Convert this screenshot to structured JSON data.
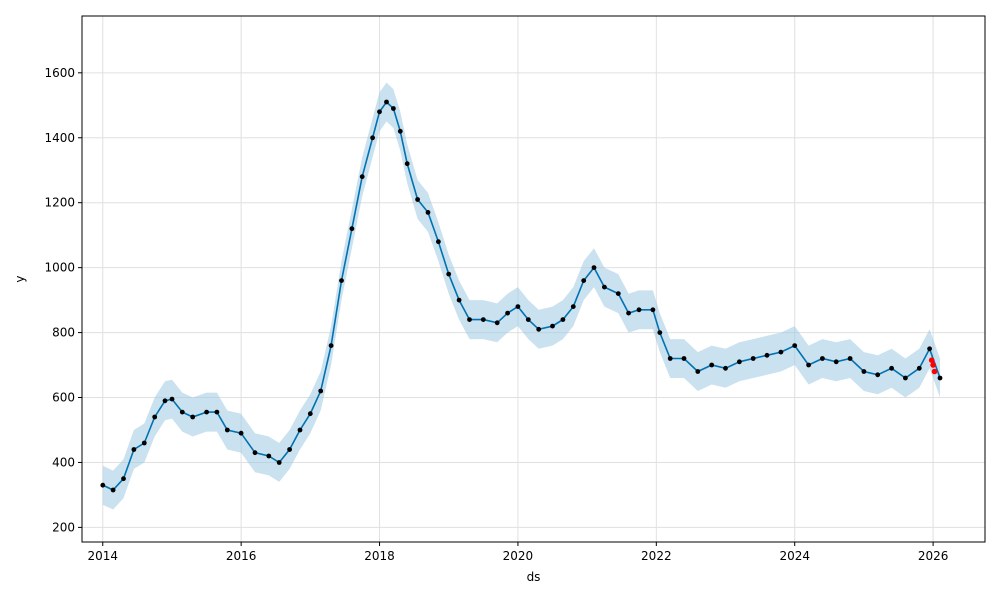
{
  "chart_data": {
    "type": "line",
    "title": "",
    "xlabel": "ds",
    "ylabel": "y",
    "xlim": [
      2013.7,
      2026.75
    ],
    "ylim": [
      155,
      1775
    ],
    "x_ticks": [
      2014,
      2016,
      2018,
      2020,
      2022,
      2024,
      2026
    ],
    "x_tick_labels": [
      "2014",
      "2016",
      "2018",
      "2020",
      "2022",
      "2024",
      "2026"
    ],
    "y_ticks": [
      200,
      400,
      600,
      800,
      1000,
      1200,
      1400,
      1600
    ],
    "y_tick_labels": [
      "200",
      "400",
      "600",
      "800",
      "1000",
      "1200",
      "1400",
      "1600"
    ],
    "grid": true,
    "colors": {
      "observed": "#000000",
      "forecast": "#0072b2",
      "interval": "#9ec9e2",
      "recent": "#ff0000",
      "grid": "#e0e0e0"
    },
    "series": [
      {
        "kind": "forecast",
        "x": [
          2014.0,
          2014.15,
          2014.3,
          2014.45,
          2014.6,
          2014.75,
          2014.9,
          2015.0,
          2015.15,
          2015.3,
          2015.5,
          2015.65,
          2015.8,
          2016.0,
          2016.2,
          2016.4,
          2016.55,
          2016.7,
          2016.85,
          2017.0,
          2017.15,
          2017.3,
          2017.45,
          2017.6,
          2017.75,
          2017.9,
          2018.0,
          2018.1,
          2018.2,
          2018.3,
          2018.4,
          2018.55,
          2018.7,
          2018.85,
          2019.0,
          2019.15,
          2019.3,
          2019.5,
          2019.7,
          2019.85,
          2020.0,
          2020.15,
          2020.3,
          2020.5,
          2020.65,
          2020.8,
          2020.95,
          2021.1,
          2021.25,
          2021.45,
          2021.6,
          2021.75,
          2021.95,
          2022.05,
          2022.2,
          2022.4,
          2022.6,
          2022.8,
          2023.0,
          2023.2,
          2023.4,
          2023.6,
          2023.8,
          2024.0,
          2024.2,
          2024.4,
          2024.6,
          2024.8,
          2025.0,
          2025.2,
          2025.4,
          2025.6,
          2025.8,
          2025.95,
          2026.1
        ],
        "y": [
          330,
          315,
          350,
          440,
          460,
          540,
          590,
          595,
          555,
          540,
          555,
          555,
          500,
          490,
          430,
          420,
          400,
          440,
          500,
          550,
          620,
          760,
          960,
          1120,
          1280,
          1400,
          1480,
          1510,
          1490,
          1420,
          1320,
          1210,
          1170,
          1080,
          980,
          900,
          840,
          840,
          830,
          860,
          880,
          840,
          810,
          820,
          840,
          880,
          960,
          1000,
          940,
          920,
          860,
          870,
          870,
          800,
          720,
          720,
          680,
          700,
          690,
          710,
          720,
          730,
          740,
          760,
          700,
          720,
          710,
          720,
          680,
          670,
          690,
          660,
          690,
          750,
          660
        ]
      },
      {
        "kind": "observed",
        "x": [
          2014.0,
          2014.15,
          2014.3,
          2014.45,
          2014.6,
          2014.75,
          2014.9,
          2015.0,
          2015.15,
          2015.3,
          2015.5,
          2015.65,
          2015.8,
          2016.0,
          2016.2,
          2016.4,
          2016.55,
          2016.7,
          2016.85,
          2017.0,
          2017.15,
          2017.3,
          2017.45,
          2017.6,
          2017.75,
          2017.9,
          2018.0,
          2018.1,
          2018.2,
          2018.3,
          2018.4,
          2018.55,
          2018.7,
          2018.85,
          2019.0,
          2019.15,
          2019.3,
          2019.5,
          2019.7,
          2019.85,
          2020.0,
          2020.15,
          2020.3,
          2020.5,
          2020.65,
          2020.8,
          2020.95,
          2021.1,
          2021.25,
          2021.45,
          2021.6,
          2021.75,
          2021.95,
          2022.05,
          2022.2,
          2022.4,
          2022.6,
          2022.8,
          2023.0,
          2023.2,
          2023.4,
          2023.6,
          2023.8,
          2024.0,
          2024.2,
          2024.4,
          2024.6,
          2024.8,
          2025.0,
          2025.2,
          2025.4,
          2025.6,
          2025.8,
          2025.95,
          2026.1
        ],
        "y": [
          330,
          315,
          350,
          440,
          460,
          540,
          590,
          595,
          555,
          540,
          555,
          555,
          500,
          490,
          430,
          420,
          400,
          440,
          500,
          550,
          620,
          760,
          960,
          1120,
          1280,
          1400,
          1480,
          1510,
          1490,
          1420,
          1320,
          1210,
          1170,
          1080,
          980,
          900,
          840,
          840,
          830,
          860,
          880,
          840,
          810,
          820,
          840,
          880,
          960,
          1000,
          940,
          920,
          860,
          870,
          870,
          800,
          720,
          720,
          680,
          700,
          690,
          710,
          720,
          730,
          740,
          760,
          700,
          720,
          710,
          720,
          680,
          670,
          690,
          660,
          690,
          750,
          660
        ]
      },
      {
        "kind": "recent",
        "x": [
          2025.98,
          2026.0,
          2026.02
        ],
        "y": [
          715,
          700,
          680
        ]
      }
    ],
    "interval_halfwidth": 60
  }
}
